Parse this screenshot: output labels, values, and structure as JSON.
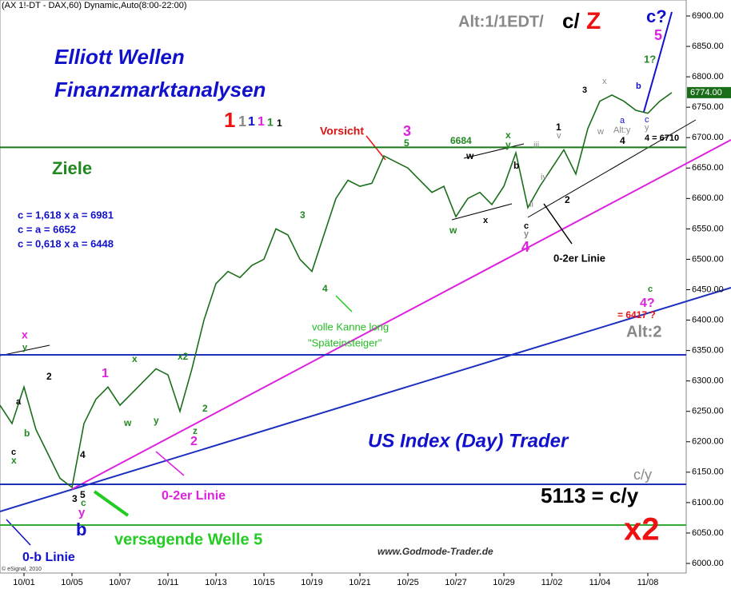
{
  "chart_data": {
    "type": "line",
    "title": "(AX 1!-DT - DAX,60) Dynamic,Auto(8:00-22:00)",
    "categories": [
      null,
      null,
      "10/01",
      null,
      null,
      null,
      "10/05",
      null,
      null,
      null,
      "10/07",
      null,
      null,
      null,
      "10/11",
      null,
      null,
      null,
      "10/13",
      null,
      null,
      null,
      "10/15",
      null,
      null,
      null,
      "10/19",
      null,
      null,
      null,
      "10/21",
      null,
      null,
      null,
      "10/25",
      null,
      null,
      null,
      "10/27",
      null,
      null,
      null,
      "10/29",
      null,
      null,
      null,
      "11/02",
      null,
      null,
      null,
      "11/04",
      null,
      null,
      null,
      "11/08",
      null,
      null
    ],
    "series": [
      {
        "name": "DAX",
        "color": "#1a6e1a",
        "values": [
          6260,
          6230,
          6290,
          6220,
          6180,
          6140,
          6125,
          6230,
          6270,
          6290,
          6260,
          6280,
          6300,
          6320,
          6310,
          6250,
          6320,
          6400,
          6460,
          6480,
          6470,
          6490,
          6500,
          6550,
          6540,
          6500,
          6480,
          6540,
          6600,
          6630,
          6620,
          6625,
          6670,
          6660,
          6650,
          6630,
          6610,
          6620,
          6570,
          6600,
          6610,
          6590,
          6620,
          6675,
          6585,
          6620,
          6650,
          6680,
          6640,
          6715,
          6760,
          6770,
          6760,
          6745,
          6740,
          6760,
          6774
        ]
      }
    ],
    "last_label": "6774.00",
    "ylim": [
      5990,
      6925
    ],
    "yticks": [
      {
        "value": 6000,
        "label": "6000.00"
      },
      {
        "value": 6050,
        "label": "6050.00"
      },
      {
        "value": 6100,
        "label": "6100.00"
      },
      {
        "value": 6150,
        "label": "6150.00"
      },
      {
        "value": 6200,
        "label": "6200.00"
      },
      {
        "value": 6250,
        "label": "6250.00"
      },
      {
        "value": 6300,
        "label": "6300.00"
      },
      {
        "value": 6350,
        "label": "6350.00"
      },
      {
        "value": 6400,
        "label": "6400.00"
      },
      {
        "value": 6450,
        "label": "6450.00"
      },
      {
        "value": 6500,
        "label": "6500.00"
      },
      {
        "value": 6550,
        "label": "6550.00"
      },
      {
        "value": 6600,
        "label": "6600.00"
      },
      {
        "value": 6650,
        "label": "6650.00"
      },
      {
        "value": 6700,
        "label": "6700.00"
      },
      {
        "value": 6750,
        "label": "6750.00"
      },
      {
        "value": 6800,
        "label": "6800.00"
      },
      {
        "value": 6850,
        "label": "6850.00"
      },
      {
        "value": 6900,
        "label": "6900.00"
      }
    ],
    "hlines": [
      {
        "value": 6684,
        "color": "#1a7a1a"
      },
      {
        "value": 6343,
        "color": "#1c2fbf"
      },
      {
        "value": 6130,
        "color": "#1c2fbf"
      },
      {
        "value": 6063,
        "color": "#33aa33"
      }
    ],
    "annotations": [
      {
        "text": "Alt:1/1EDT/",
        "color": "#888888"
      },
      {
        "text": "c/",
        "color": "#000000"
      },
      {
        "text": "Z",
        "color": "#ee1111"
      },
      {
        "text": "c?",
        "color": "#1111cc"
      },
      {
        "text": "5",
        "color": "#dd22dd"
      },
      {
        "text": "1?",
        "color": "#228822"
      },
      {
        "text": "Elliott Wellen",
        "color": "#1111cc"
      },
      {
        "text": "Finanzmarktanalysen",
        "color": "#1111cc"
      },
      {
        "text": "1",
        "color": "#ee1111"
      },
      {
        "text": "1",
        "color": "#888888"
      },
      {
        "text": "1",
        "color": "#1111cc"
      },
      {
        "text": "1",
        "color": "#dd22dd"
      },
      {
        "text": "1",
        "color": "#228822"
      },
      {
        "text": "1",
        "color": "#000000"
      },
      {
        "text": "Vorsicht",
        "color": "#dd1111"
      },
      {
        "text": "3",
        "color": "#dd22dd"
      },
      {
        "text": "5",
        "color": "#228822"
      },
      {
        "text": "6684",
        "color": "#228822"
      },
      {
        "text": "Ziele",
        "color": "#228822"
      },
      {
        "text": "c = 1,618 x a = 6981",
        "color": "#1111cc"
      },
      {
        "text": "c = a = 6652",
        "color": "#1111cc"
      },
      {
        "text": "c = 0,618 x a = 6448",
        "color": "#1111cc"
      },
      {
        "text": "3",
        "color": "#228822"
      },
      {
        "text": "4",
        "color": "#228822"
      },
      {
        "text": "volle Kanne long",
        "color": "#22bb22"
      },
      {
        "text": "\"Späteinsteiger\"",
        "color": "#22bb22"
      },
      {
        "text": "x",
        "color": "#dd22dd"
      },
      {
        "text": "y",
        "color": "#228822"
      },
      {
        "text": "2",
        "color": "#000000"
      },
      {
        "text": "a",
        "color": "#000000"
      },
      {
        "text": "b",
        "color": "#228822"
      },
      {
        "text": "c",
        "color": "#000000"
      },
      {
        "text": "x",
        "color": "#228822"
      },
      {
        "text": "1",
        "color": "#dd22dd"
      },
      {
        "text": "x",
        "color": "#228822"
      },
      {
        "text": "x2",
        "color": "#228822"
      },
      {
        "text": "w",
        "color": "#228822"
      },
      {
        "text": "y",
        "color": "#228822"
      },
      {
        "text": "2",
        "color": "#228822"
      },
      {
        "text": "z",
        "color": "#228822"
      },
      {
        "text": "2",
        "color": "#dd22dd"
      },
      {
        "text": "4",
        "color": "#000000"
      },
      {
        "text": "3",
        "color": "#000000"
      },
      {
        "text": "5",
        "color": "#000000"
      },
      {
        "text": "c",
        "color": "#228822"
      },
      {
        "text": "y",
        "color": "#dd22dd"
      },
      {
        "text": "b",
        "color": "#1111cc"
      },
      {
        "text": "0-b Linie",
        "color": "#1111cc"
      },
      {
        "text": "0-2er Linie",
        "color": "#dd22dd"
      },
      {
        "text": "versagende Welle 5",
        "color": "#22cc22"
      },
      {
        "text": "US Index (Day) Trader",
        "color": "#1111cc"
      },
      {
        "text": "c/y",
        "color": "#888888"
      },
      {
        "text": "5113 = c/y",
        "color": "#000000"
      },
      {
        "text": "x2",
        "color": "#ee1111"
      },
      {
        "text": "www.Godmode-Trader.de",
        "color": "#333333"
      },
      {
        "text": "0-2er Linie",
        "color": "#000000"
      },
      {
        "text": "4",
        "color": "#dd22dd"
      },
      {
        "text": "c",
        "color": "#000000"
      },
      {
        "text": "y",
        "color": "#888888"
      },
      {
        "text": "w",
        "color": "#000000"
      },
      {
        "text": "w",
        "color": "#228822"
      },
      {
        "text": "x",
        "color": "#000000"
      },
      {
        "text": "x",
        "color": "#228822"
      },
      {
        "text": "y",
        "color": "#228822"
      },
      {
        "text": "b",
        "color": "#000000"
      },
      {
        "text": "iii",
        "color": "#888888"
      },
      {
        "text": "iv",
        "color": "#888888"
      },
      {
        "text": "ii",
        "color": "#888888"
      },
      {
        "text": "1",
        "color": "#000000"
      },
      {
        "text": "v",
        "color": "#888888"
      },
      {
        "text": "2",
        "color": "#000000"
      },
      {
        "text": "3",
        "color": "#000000"
      },
      {
        "text": "x",
        "color": "#888888"
      },
      {
        "text": "a",
        "color": "#1111cc"
      },
      {
        "text": "b",
        "color": "#1111cc"
      },
      {
        "text": "w",
        "color": "#888888"
      },
      {
        "text": "Alt:y",
        "color": "#888888"
      },
      {
        "text": "4",
        "color": "#000000"
      },
      {
        "text": "c",
        "color": "#1111cc"
      },
      {
        "text": "y",
        "color": "#888888"
      },
      {
        "text": "4 = 6710",
        "color": "#000000"
      },
      {
        "text": "c",
        "color": "#228822"
      },
      {
        "text": "4?",
        "color": "#dd22dd"
      },
      {
        "text": "= 6417 ?",
        "color": "#ee1111"
      },
      {
        "text": "Alt:2",
        "color": "#888888"
      },
      {
        "text": "© eSignal, 2010",
        "color": "#333333"
      }
    ]
  }
}
